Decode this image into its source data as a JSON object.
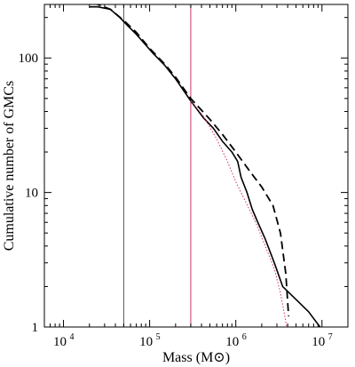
{
  "chart_data": {
    "type": "line",
    "xlabel": "Mass (M⊙)",
    "ylabel": "Cumulative number of GMCs",
    "x_scale": "log",
    "y_scale": "log",
    "xlim": [
      6000,
      20000000
    ],
    "ylim": [
      1,
      250
    ],
    "x_ticks": [
      {
        "value": 10000,
        "base": "10",
        "exp": "4"
      },
      {
        "value": 100000,
        "base": "10",
        "exp": "5"
      },
      {
        "value": 1000000,
        "base": "10",
        "exp": "6"
      },
      {
        "value": 10000000,
        "base": "10",
        "exp": "7"
      }
    ],
    "y_ticks": [
      {
        "value": 1,
        "label": "1"
      },
      {
        "value": 10,
        "label": "10"
      },
      {
        "value": 100,
        "label": "100"
      }
    ],
    "vlines": [
      {
        "x": 50000,
        "color": "#555555"
      },
      {
        "x": 300000,
        "color": "#d0306a"
      }
    ],
    "series": [
      {
        "style": "solid",
        "color": "#000000",
        "points": [
          [
            20000,
            240
          ],
          [
            25000,
            240
          ],
          [
            35000,
            230
          ],
          [
            45000,
            200
          ],
          [
            55000,
            175
          ],
          [
            70000,
            150
          ],
          [
            90000,
            125
          ],
          [
            110000,
            108
          ],
          [
            150000,
            88
          ],
          [
            200000,
            70
          ],
          [
            300000,
            48
          ],
          [
            420000,
            36
          ],
          [
            550000,
            30
          ],
          [
            700000,
            24
          ],
          [
            900000,
            20
          ],
          [
            1050000,
            17
          ],
          [
            1150000,
            13
          ],
          [
            1350000,
            10
          ],
          [
            1550000,
            7.5
          ],
          [
            1800000,
            6
          ],
          [
            2200000,
            4.5
          ],
          [
            2800000,
            3
          ],
          [
            3500000,
            2
          ],
          [
            5000000,
            1.6
          ],
          [
            7000000,
            1.3
          ],
          [
            9500000,
            1
          ]
        ]
      },
      {
        "style": "dashed",
        "color": "#000000",
        "points": [
          [
            16000,
            270
          ],
          [
            25000,
            250
          ],
          [
            35000,
            230
          ],
          [
            50000,
            190
          ],
          [
            70000,
            155
          ],
          [
            100000,
            118
          ],
          [
            150000,
            90
          ],
          [
            200000,
            72
          ],
          [
            300000,
            50
          ],
          [
            500000,
            35
          ],
          [
            700000,
            27
          ],
          [
            1000000,
            20
          ],
          [
            1500000,
            14
          ],
          [
            2000000,
            11
          ],
          [
            2700000,
            8
          ],
          [
            3300000,
            5
          ],
          [
            3800000,
            2.5
          ],
          [
            4100000,
            1.2
          ]
        ]
      },
      {
        "style": "dotted",
        "color": "#d0306a",
        "points": [
          [
            300000,
            48
          ],
          [
            420000,
            37
          ],
          [
            600000,
            25
          ],
          [
            800000,
            17
          ],
          [
            1000000,
            12
          ],
          [
            1300000,
            8.5
          ],
          [
            1700000,
            6
          ],
          [
            2200000,
            4
          ],
          [
            2800000,
            2.7
          ],
          [
            3300000,
            1.8
          ],
          [
            3700000,
            1.2
          ],
          [
            3900000,
            1
          ]
        ]
      }
    ]
  }
}
